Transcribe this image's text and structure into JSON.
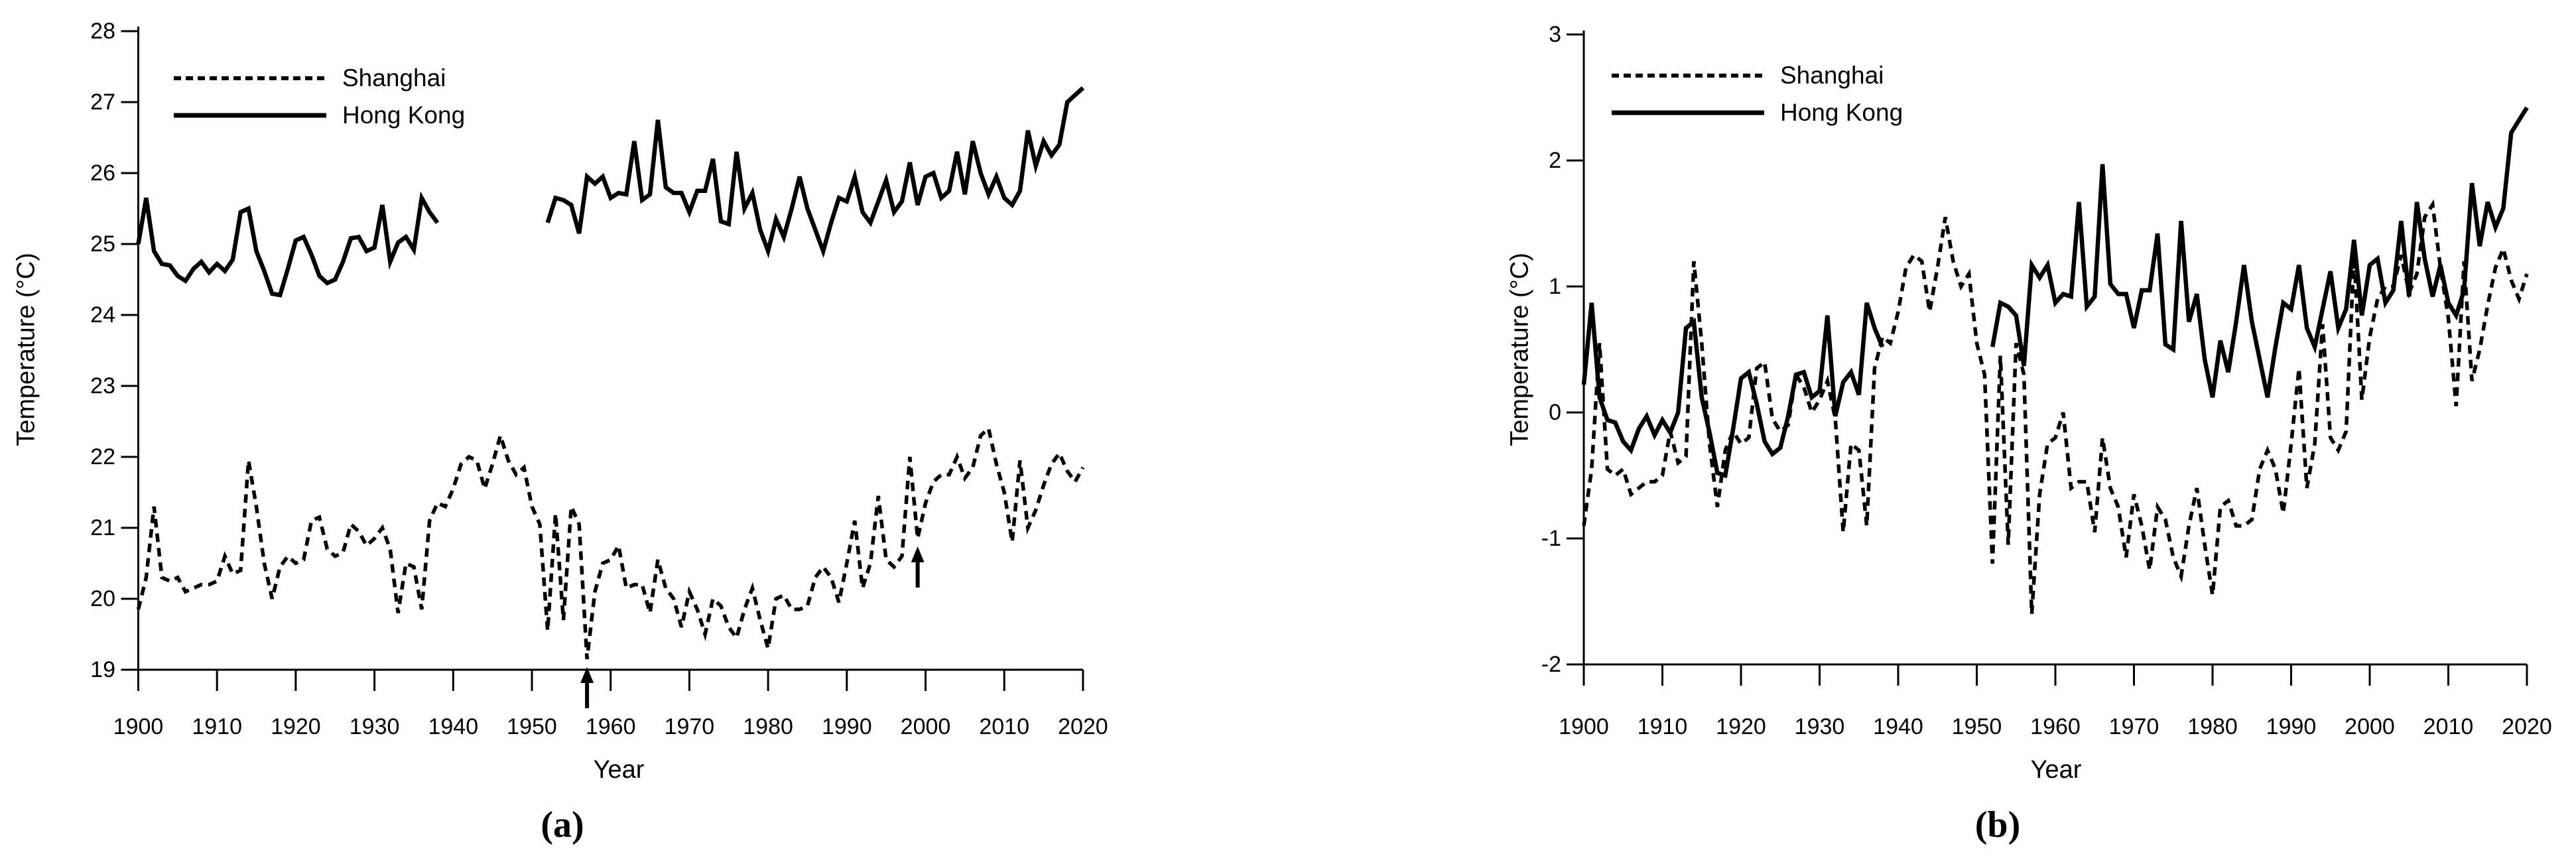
{
  "page": {
    "background": "#ffffff",
    "line_color": "#000000"
  },
  "chart_data": [
    {
      "id": "panel-a",
      "type": "line",
      "caption": "(a)",
      "xlabel": "Year",
      "ylabel": "Temperature (°C)",
      "x_range": [
        1900,
        2020
      ],
      "ylim": [
        19,
        28
      ],
      "yticks": [
        28,
        27,
        26,
        25,
        24,
        23,
        22,
        21,
        20,
        19
      ],
      "xticks": [
        1900,
        1910,
        1920,
        1930,
        1940,
        1950,
        1960,
        1970,
        1980,
        1990,
        2000,
        2010,
        2020
      ],
      "grid": false,
      "legend_position": "top-left",
      "year_start": 1900,
      "year_step": 1,
      "series": [
        {
          "name": "Shanghai",
          "line_style": "dashed",
          "values": [
            19.85,
            20.3,
            21.3,
            20.3,
            20.25,
            20.3,
            20.1,
            20.15,
            20.2,
            20.2,
            20.25,
            20.6,
            20.35,
            20.4,
            21.95,
            21.3,
            20.5,
            20,
            20.45,
            20.6,
            20.5,
            20.55,
            21.1,
            21.15,
            20.7,
            20.6,
            20.65,
            21.05,
            20.95,
            20.75,
            20.85,
            21,
            20.7,
            19.8,
            20.5,
            20.45,
            19.85,
            21.1,
            21.35,
            21.3,
            21.55,
            21.9,
            22,
            21.95,
            21.55,
            21.9,
            22.3,
            21.95,
            21.75,
            21.85,
            21.3,
            21.05,
            19.55,
            21.2,
            19.7,
            21.3,
            21.05,
            19.15,
            20.1,
            20.5,
            20.55,
            20.75,
            20.15,
            20.2,
            20.2,
            19.8,
            20.55,
            20.15,
            20,
            19.6,
            20.1,
            19.85,
            19.5,
            20,
            19.9,
            19.6,
            19.45,
            19.85,
            20.15,
            19.7,
            19.3,
            20,
            20.05,
            19.85,
            19.85,
            19.9,
            20.3,
            20.45,
            20.3,
            19.95,
            20.5,
            21.1,
            20.15,
            20.5,
            21.45,
            20.55,
            20.45,
            20.6,
            22,
            20.85,
            21.35,
            21.65,
            21.75,
            21.75,
            22,
            21.7,
            21.85,
            22.3,
            22.4,
            21.9,
            21.5,
            20.8,
            21.95,
            21,
            21.25,
            21.6,
            21.9,
            22.05,
            21.8,
            21.65,
            21.85
          ]
        },
        {
          "name": "Hong Kong",
          "line_style": "solid",
          "values": [
            25,
            25.65,
            24.9,
            24.72,
            24.7,
            24.55,
            24.48,
            24.65,
            24.75,
            24.6,
            24.72,
            24.62,
            24.78,
            25.45,
            25.5,
            24.9,
            24.62,
            24.3,
            24.28,
            24.65,
            25.05,
            25.1,
            24.85,
            24.55,
            24.45,
            24.5,
            24.75,
            25.08,
            25.1,
            24.9,
            24.95,
            25.55,
            24.75,
            25.02,
            25.1,
            24.92,
            25.65,
            25.45,
            25.3,
            null,
            null,
            null,
            null,
            null,
            null,
            null,
            null,
            null,
            null,
            null,
            null,
            null,
            25.3,
            25.65,
            25.62,
            25.55,
            25.15,
            25.95,
            25.85,
            25.95,
            25.65,
            25.72,
            25.7,
            26.45,
            25.62,
            25.7,
            26.75,
            25.8,
            25.72,
            25.72,
            25.45,
            25.75,
            25.75,
            26.2,
            25.32,
            25.28,
            26.3,
            25.5,
            25.72,
            25.2,
            24.9,
            25.35,
            25.1,
            25.5,
            25.95,
            25.5,
            25.2,
            24.9,
            25.3,
            25.65,
            25.6,
            25.95,
            25.45,
            25.3,
            25.6,
            25.9,
            25.45,
            25.6,
            26.15,
            25.55,
            25.95,
            26,
            25.65,
            25.75,
            26.3,
            25.7,
            26.45,
            26,
            25.7,
            25.95,
            25.65,
            25.55,
            25.75,
            26.6,
            26.1,
            26.45,
            26.25,
            26.4,
            27,
            27.1,
            27.2
          ]
        }
      ],
      "annotations": [
        {
          "type": "up-arrow",
          "year": 1957
        },
        {
          "type": "up-arrow",
          "year": 1999
        }
      ]
    },
    {
      "id": "panel-b",
      "type": "line",
      "caption": "(b)",
      "xlabel": "Year",
      "ylabel": "Temperature (°C)",
      "x_range": [
        1900,
        2020
      ],
      "ylim": [
        -2,
        3
      ],
      "yticks": [
        3,
        2,
        1,
        0,
        -1,
        -2
      ],
      "xticks": [
        1900,
        1910,
        1920,
        1930,
        1940,
        1950,
        1960,
        1970,
        1980,
        1990,
        2000,
        2010,
        2020
      ],
      "grid": false,
      "legend_position": "top-left",
      "year_start": 1900,
      "year_step": 1,
      "series": [
        {
          "name": "Shanghai",
          "line_style": "dashed",
          "values": [
            -0.9,
            -0.45,
            0.55,
            -0.45,
            -0.5,
            -0.45,
            -0.65,
            -0.6,
            -0.55,
            -0.55,
            -0.5,
            -0.15,
            -0.4,
            -0.35,
            1.2,
            0.55,
            -0.25,
            -0.75,
            -0.3,
            -0.15,
            -0.25,
            -0.2,
            0.35,
            0.4,
            -0.05,
            -0.15,
            -0.1,
            0.3,
            0.2,
            0,
            0.1,
            0.25,
            -0.05,
            -0.95,
            -0.25,
            -0.3,
            -0.9,
            0.35,
            0.6,
            0.55,
            0.8,
            1.15,
            1.25,
            1.2,
            0.8,
            1.15,
            1.55,
            1.2,
            1,
            1.1,
            0.55,
            0.3,
            -1.2,
            0.45,
            -1.05,
            0.55,
            0.3,
            -1.6,
            -0.65,
            -0.25,
            -0.2,
            0,
            -0.6,
            -0.55,
            -0.55,
            -0.95,
            -0.2,
            -0.6,
            -0.75,
            -1.15,
            -0.65,
            -0.9,
            -1.25,
            -0.75,
            -0.85,
            -1.15,
            -1.3,
            -0.9,
            -0.6,
            -1.05,
            -1.45,
            -0.75,
            -0.7,
            -0.9,
            -0.9,
            -0.85,
            -0.45,
            -0.3,
            -0.45,
            -0.8,
            -0.25,
            0.35,
            -0.6,
            -0.25,
            0.7,
            -0.2,
            -0.3,
            -0.15,
            1.25,
            0.1,
            0.6,
            0.9,
            1,
            1,
            1.25,
            0.95,
            1.1,
            1.55,
            1.65,
            1.15,
            0.75,
            0.05,
            1.2,
            0.25,
            0.5,
            0.85,
            1.15,
            1.3,
            1.05,
            0.9,
            1.1
          ]
        },
        {
          "name": "Hong Kong",
          "line_style": "solid",
          "values": [
            0.22,
            0.87,
            0.12,
            -0.06,
            -0.08,
            -0.23,
            -0.3,
            -0.13,
            -0.03,
            -0.18,
            -0.06,
            -0.16,
            0,
            0.67,
            0.72,
            0.12,
            -0.16,
            -0.48,
            -0.5,
            -0.13,
            0.27,
            0.32,
            0.07,
            -0.23,
            -0.33,
            -0.28,
            -0.03,
            0.3,
            0.32,
            0.12,
            0.17,
            0.77,
            -0.03,
            0.24,
            0.32,
            0.14,
            0.87,
            0.67,
            0.52,
            null,
            null,
            null,
            null,
            null,
            null,
            null,
            null,
            null,
            null,
            null,
            null,
            null,
            0.52,
            0.87,
            0.84,
            0.77,
            0.37,
            1.17,
            1.07,
            1.17,
            0.87,
            0.94,
            0.92,
            1.67,
            0.84,
            0.92,
            1.97,
            1.02,
            0.94,
            0.94,
            0.67,
            0.97,
            0.97,
            1.42,
            0.54,
            0.5,
            1.52,
            0.72,
            0.94,
            0.42,
            0.12,
            0.57,
            0.32,
            0.72,
            1.17,
            0.72,
            0.42,
            0.12,
            0.52,
            0.87,
            0.82,
            1.17,
            0.67,
            0.52,
            0.82,
            1.12,
            0.67,
            0.82,
            1.37,
            0.77,
            1.17,
            1.22,
            0.87,
            0.97,
            1.52,
            0.92,
            1.67,
            1.22,
            0.92,
            1.17,
            0.87,
            0.77,
            0.97,
            1.82,
            1.32,
            1.67,
            1.47,
            1.62,
            2.22,
            2.32,
            2.42
          ]
        }
      ],
      "annotations": []
    }
  ]
}
